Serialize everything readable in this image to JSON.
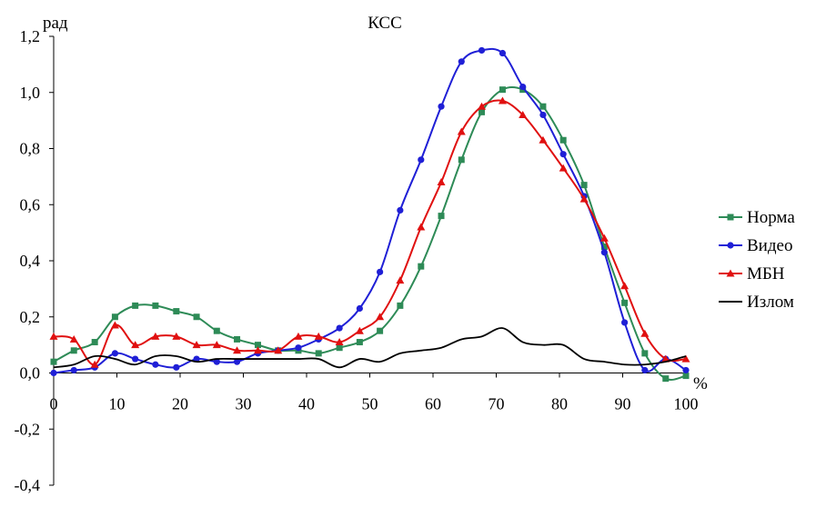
{
  "chart_data": {
    "type": "line",
    "title": "КСС",
    "ylabel": "рад",
    "xlabel": "%",
    "xlim": [
      0,
      100
    ],
    "ylim": [
      -0.4,
      1.2
    ],
    "x_ticks": [
      {
        "value": 0,
        "label": "0"
      },
      {
        "value": 10,
        "label": "10"
      },
      {
        "value": 20,
        "label": "20"
      },
      {
        "value": 30,
        "label": "30"
      },
      {
        "value": 40,
        "label": "40"
      },
      {
        "value": 50,
        "label": "50"
      },
      {
        "value": 60,
        "label": "60"
      },
      {
        "value": 70,
        "label": "70"
      },
      {
        "value": 80,
        "label": "80"
      },
      {
        "value": 90,
        "label": "90"
      },
      {
        "value": 100,
        "label": "100"
      }
    ],
    "y_ticks": [
      {
        "value": 1.2,
        "label": "1,2"
      },
      {
        "value": 1.0,
        "label": "1,0"
      },
      {
        "value": 0.8,
        "label": "0,8"
      },
      {
        "value": 0.6,
        "label": "0,6"
      },
      {
        "value": 0.4,
        "label": "0,4"
      },
      {
        "value": 0.2,
        "label": "0,2"
      },
      {
        "value": 0.0,
        "label": "0,0"
      },
      {
        "value": -0.2,
        "label": "-0,2"
      },
      {
        "value": -0.4,
        "label": "-0,4"
      }
    ],
    "grid": false,
    "legend_position": "right",
    "series": [
      {
        "name": "Норма",
        "color": "#2e8b57",
        "marker": "square",
        "x": [
          0,
          3.2,
          6.5,
          9.7,
          12.9,
          16.1,
          19.4,
          22.6,
          25.8,
          29.0,
          32.3,
          35.5,
          38.7,
          41.9,
          45.2,
          48.4,
          51.6,
          54.8,
          58.1,
          61.3,
          64.5,
          67.7,
          71.0,
          74.2,
          77.4,
          80.6,
          83.9,
          87.1,
          90.3,
          93.5,
          96.8,
          100
        ],
        "y": [
          0.04,
          0.08,
          0.11,
          0.2,
          0.24,
          0.24,
          0.22,
          0.2,
          0.15,
          0.12,
          0.1,
          0.08,
          0.08,
          0.07,
          0.09,
          0.11,
          0.15,
          0.24,
          0.38,
          0.56,
          0.76,
          0.93,
          1.01,
          1.01,
          0.95,
          0.83,
          0.67,
          0.45,
          0.25,
          0.07,
          -0.02,
          -0.01
        ]
      },
      {
        "name": "Видео",
        "color": "#1f1fd6",
        "marker": "circle",
        "x": [
          0,
          3.2,
          6.5,
          9.7,
          12.9,
          16.1,
          19.4,
          22.6,
          25.8,
          29.0,
          32.3,
          35.5,
          38.7,
          41.9,
          45.2,
          48.4,
          51.6,
          54.8,
          58.1,
          61.3,
          64.5,
          67.7,
          71.0,
          74.2,
          77.4,
          80.6,
          83.9,
          87.1,
          90.3,
          93.5,
          96.8,
          100
        ],
        "y": [
          0.0,
          0.01,
          0.02,
          0.07,
          0.05,
          0.03,
          0.02,
          0.05,
          0.04,
          0.04,
          0.07,
          0.08,
          0.09,
          0.12,
          0.16,
          0.23,
          0.36,
          0.58,
          0.76,
          0.95,
          1.11,
          1.15,
          1.14,
          1.02,
          0.92,
          0.78,
          0.63,
          0.43,
          0.18,
          0.01,
          0.05,
          0.01
        ]
      },
      {
        "name": "МБН",
        "color": "#e01010",
        "marker": "triangle",
        "x": [
          0,
          3.2,
          6.5,
          9.7,
          12.9,
          16.1,
          19.4,
          22.6,
          25.8,
          29.0,
          32.3,
          35.5,
          38.7,
          41.9,
          45.2,
          48.4,
          51.6,
          54.8,
          58.1,
          61.3,
          64.5,
          67.7,
          71.0,
          74.2,
          77.4,
          80.6,
          83.9,
          87.1,
          90.3,
          93.5,
          96.8,
          100
        ],
        "y": [
          0.13,
          0.12,
          0.03,
          0.17,
          0.1,
          0.13,
          0.13,
          0.1,
          0.1,
          0.08,
          0.08,
          0.08,
          0.13,
          0.13,
          0.11,
          0.15,
          0.2,
          0.33,
          0.52,
          0.68,
          0.86,
          0.95,
          0.97,
          0.92,
          0.83,
          0.73,
          0.62,
          0.48,
          0.31,
          0.14,
          0.05,
          0.05
        ]
      },
      {
        "name": "Излом",
        "color": "#000000",
        "marker": "none",
        "x": [
          0,
          3.2,
          6.5,
          9.7,
          12.9,
          16.1,
          19.4,
          22.6,
          25.8,
          29.0,
          32.3,
          35.5,
          38.7,
          41.9,
          45.2,
          48.4,
          51.6,
          54.8,
          58.1,
          61.3,
          64.5,
          67.7,
          71.0,
          74.2,
          77.4,
          80.6,
          83.9,
          87.1,
          90.3,
          93.5,
          96.8,
          100
        ],
        "y": [
          0.02,
          0.03,
          0.06,
          0.05,
          0.03,
          0.06,
          0.06,
          0.04,
          0.05,
          0.05,
          0.05,
          0.05,
          0.05,
          0.05,
          0.02,
          0.05,
          0.04,
          0.07,
          0.08,
          0.09,
          0.12,
          0.13,
          0.16,
          0.11,
          0.1,
          0.1,
          0.05,
          0.04,
          0.03,
          0.03,
          0.04,
          0.06
        ]
      }
    ]
  }
}
